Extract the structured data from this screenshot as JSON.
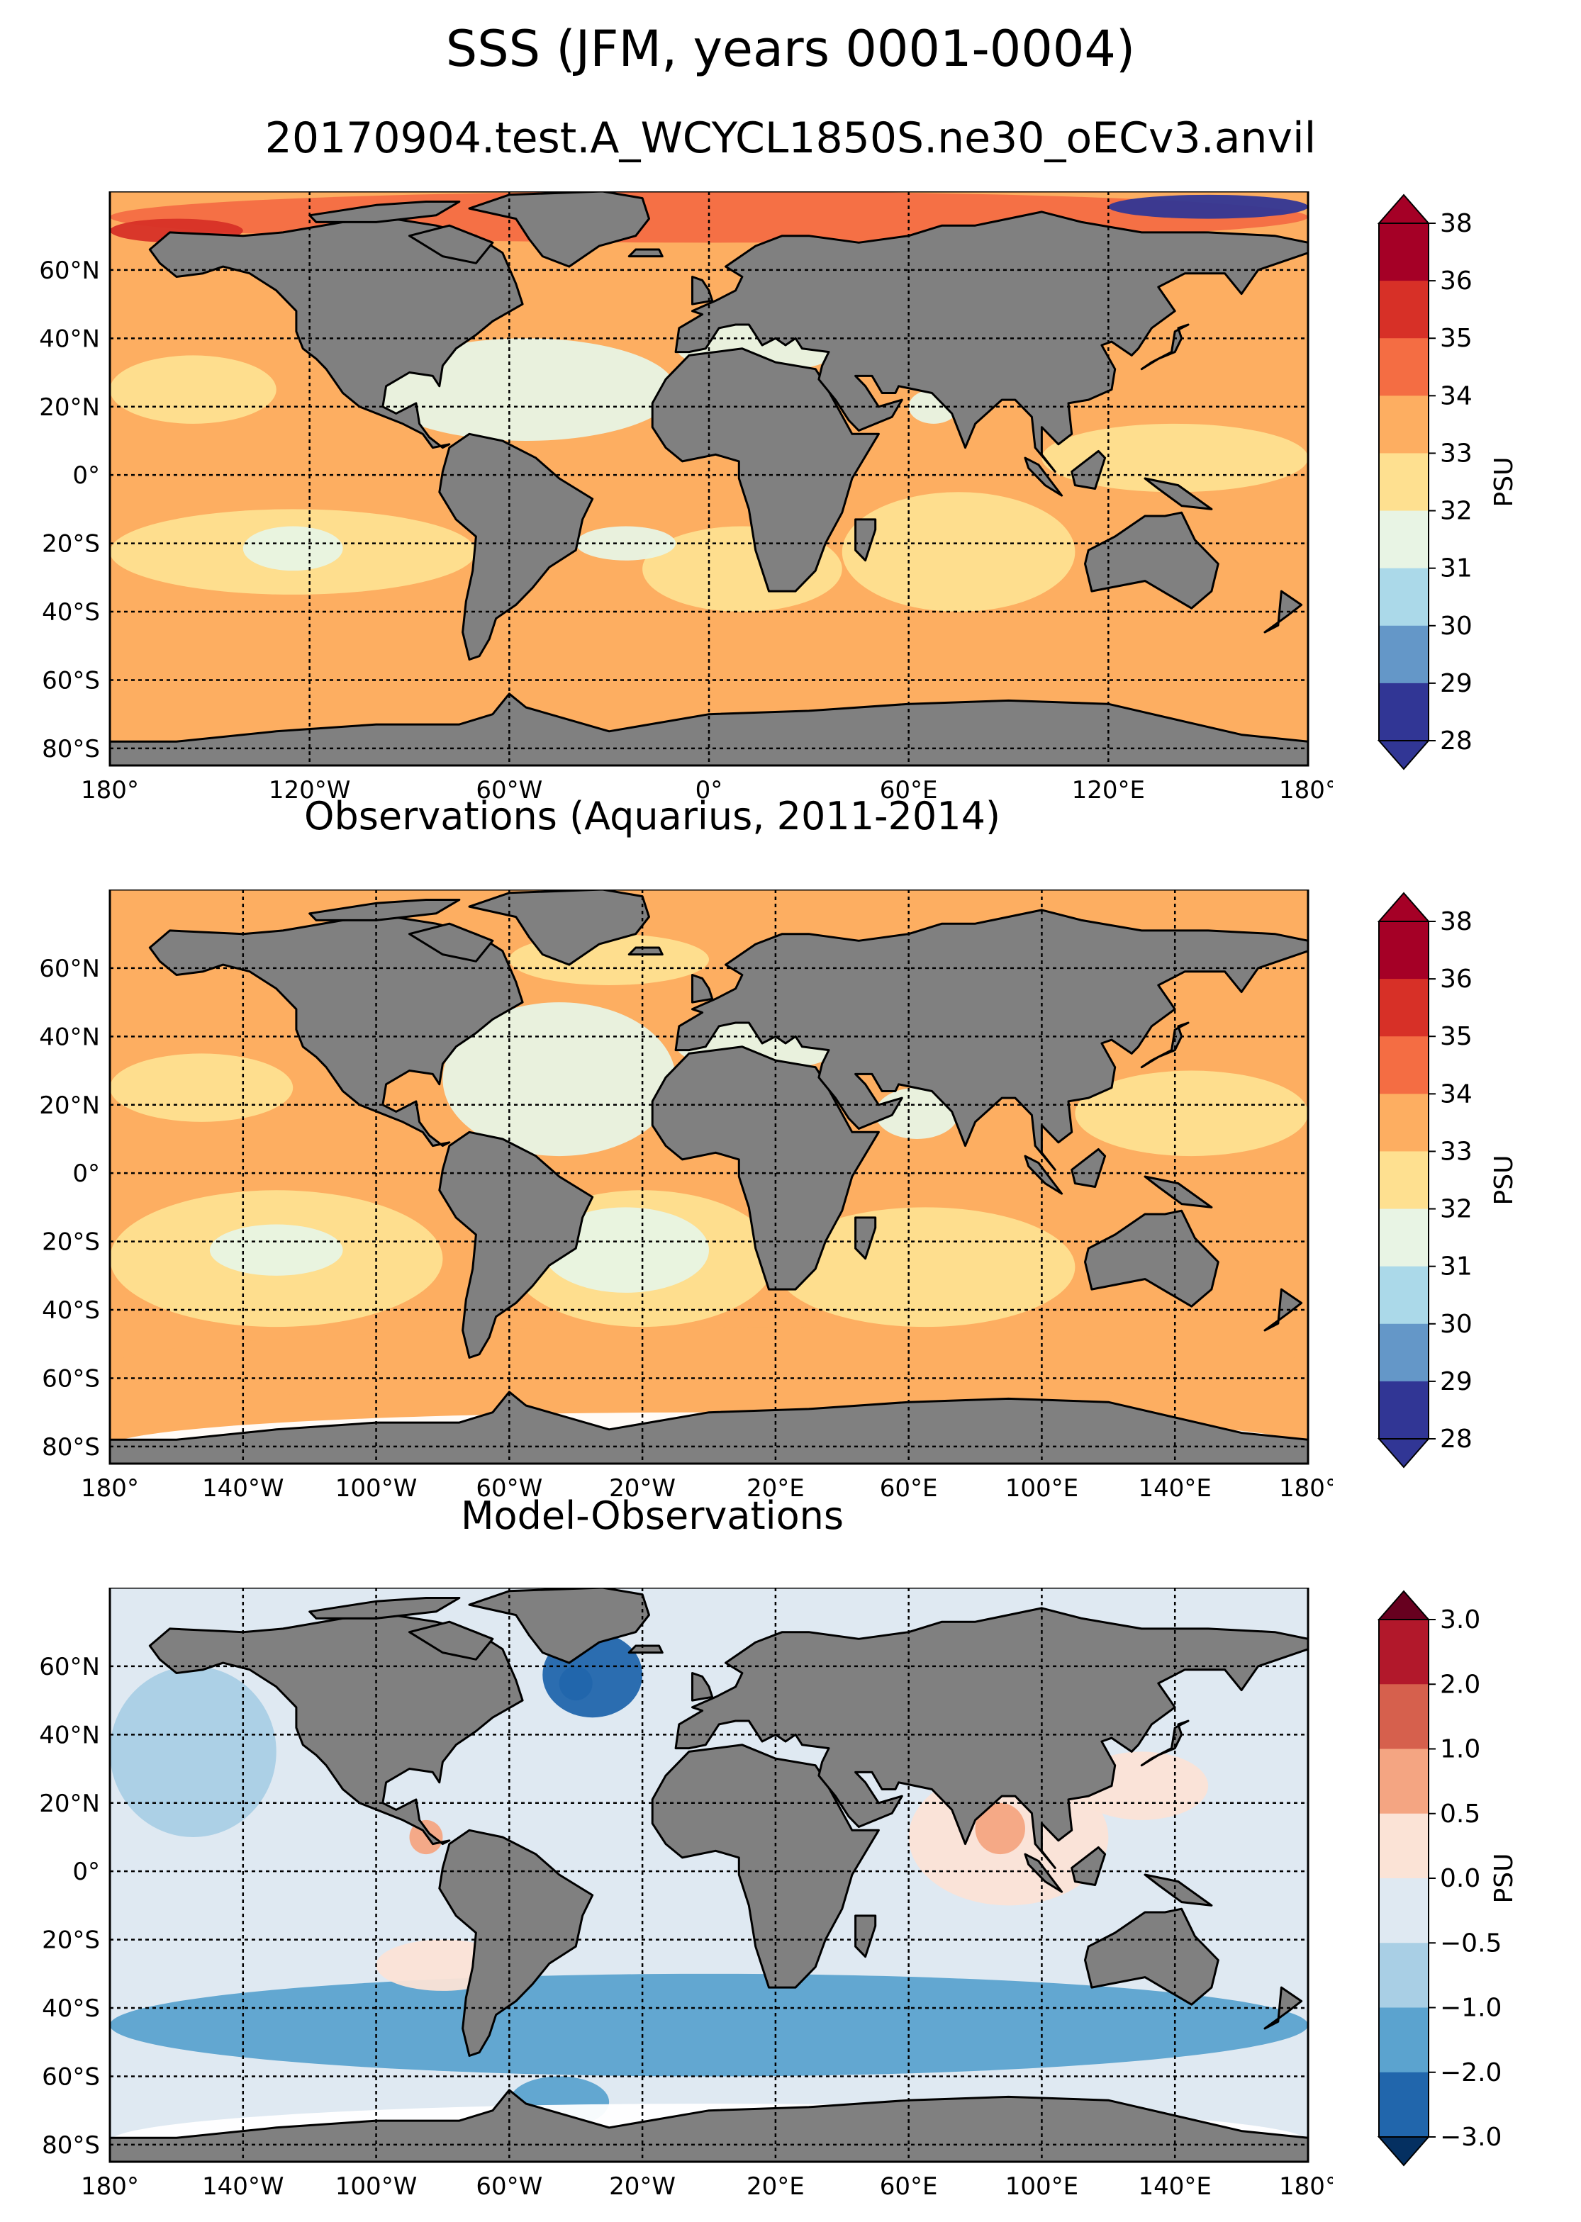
{
  "title": "SSS (JFM, years 0001-0004)",
  "subtitle": "20170904.test.A_WCYCL1850S.ne30_oECv3.anvil",
  "colors": {
    "land": "#808080",
    "grid": "#000000",
    "missing": "#ffffff"
  },
  "panels": [
    {
      "id": "model",
      "title": "",
      "lat_labels": [
        "60°N",
        "40°N",
        "20°N",
        "0°",
        "20°S",
        "40°S",
        "60°S",
        "80°S"
      ],
      "lon_labels": [
        "180°",
        "120°W",
        "60°W",
        "0°",
        "60°E",
        "120°E",
        "180°"
      ],
      "colorbar": {
        "label": "PSU",
        "ticks": [
          "38",
          "36",
          "35",
          "34",
          "33",
          "32",
          "31",
          "30",
          "29",
          "28"
        ],
        "colors": [
          "#a50026",
          "#d73027",
          "#f46d43",
          "#fdae61",
          "#fee090",
          "#e8f4e4",
          "#abd9e9",
          "#6497c8",
          "#313695"
        ],
        "extend_top": "#a50026",
        "extend_bottom": "#313695"
      }
    },
    {
      "id": "obs",
      "title": "Observations (Aquarius, 2011-2014)",
      "lat_labels": [
        "60°N",
        "40°N",
        "20°N",
        "0°",
        "20°S",
        "40°S",
        "60°S",
        "80°S"
      ],
      "lon_labels": [
        "180°",
        "140°W",
        "100°W",
        "60°W",
        "20°W",
        "20°E",
        "60°E",
        "100°E",
        "140°E",
        "180°"
      ],
      "colorbar": {
        "label": "PSU",
        "ticks": [
          "38",
          "36",
          "35",
          "34",
          "33",
          "32",
          "31",
          "30",
          "29",
          "28"
        ],
        "colors": [
          "#a50026",
          "#d73027",
          "#f46d43",
          "#fdae61",
          "#fee090",
          "#e8f4e4",
          "#abd9e9",
          "#6497c8",
          "#313695"
        ],
        "extend_top": "#a50026",
        "extend_bottom": "#313695"
      }
    },
    {
      "id": "diff",
      "title": "Model-Observations",
      "lat_labels": [
        "60°N",
        "40°N",
        "20°N",
        "0°",
        "20°S",
        "40°S",
        "60°S",
        "80°S"
      ],
      "lon_labels": [
        "180°",
        "140°W",
        "100°W",
        "60°W",
        "20°W",
        "20°E",
        "60°E",
        "100°E",
        "140°E",
        "180°"
      ],
      "colorbar": {
        "label": "PSU",
        "ticks": [
          "3.0",
          "2.0",
          "1.0",
          "0.5",
          "0.0",
          "−0.5",
          "−1.0",
          "−2.0",
          "−3.0"
        ],
        "colors": [
          "#b2182b",
          "#d6604d",
          "#f4a582",
          "#fbe3d6",
          "#dfe9f2",
          "#a9cfe5",
          "#5ba3cf",
          "#2166ac"
        ],
        "extend_top": "#67001f",
        "extend_bottom": "#053061"
      }
    }
  ]
}
